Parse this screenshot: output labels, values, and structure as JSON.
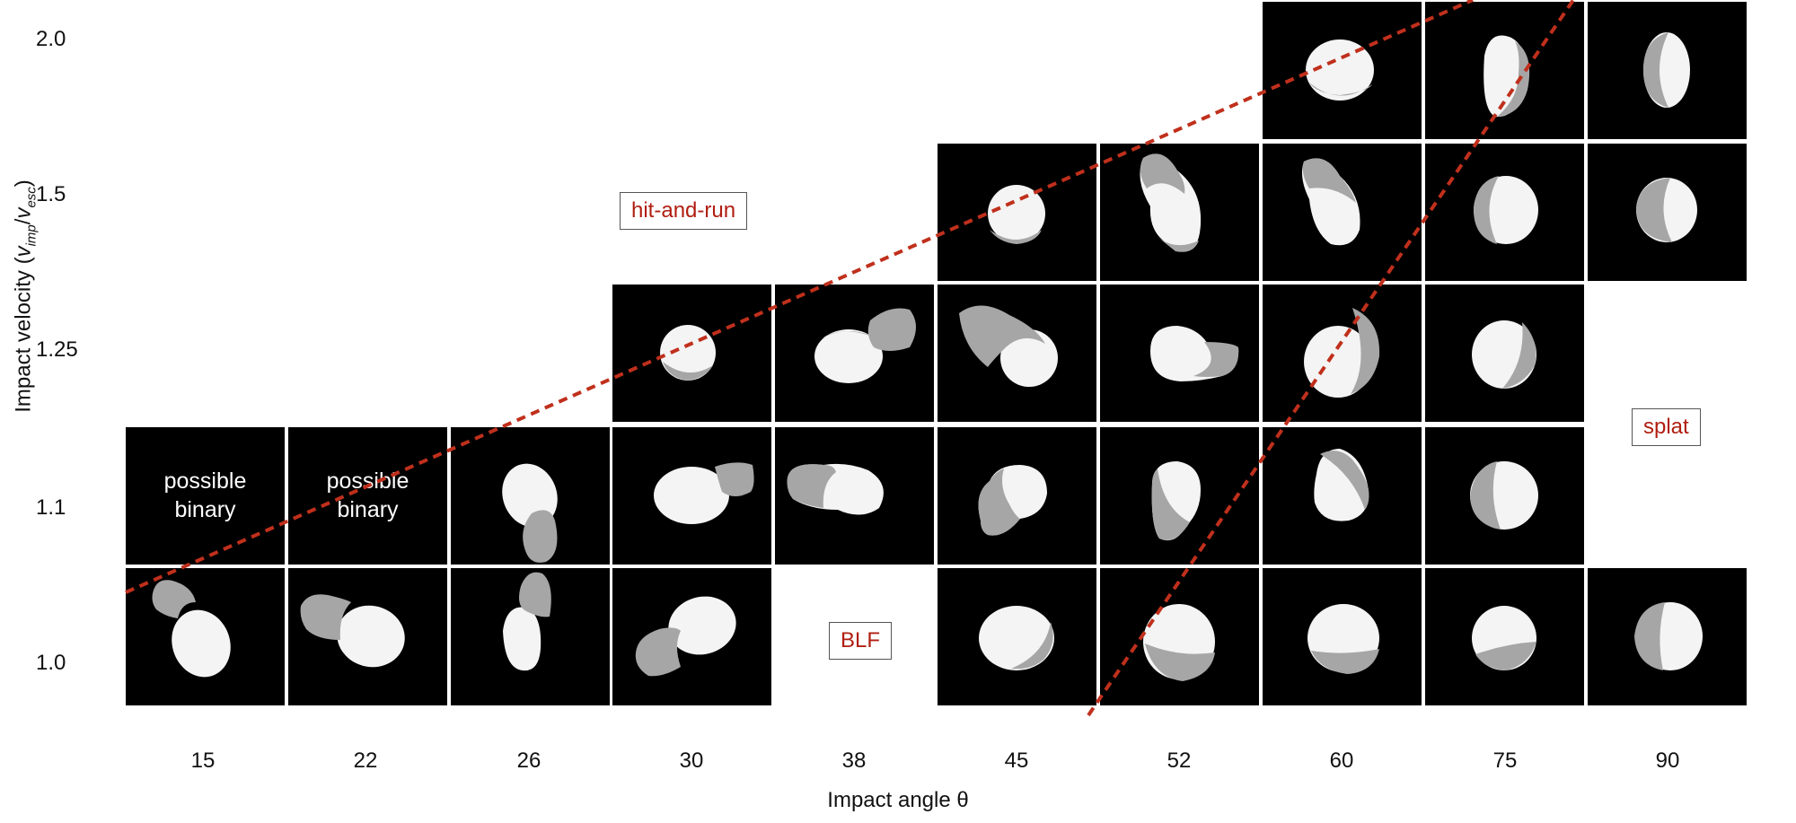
{
  "y_ticks": [
    "2.0",
    "1.5",
    "1.25",
    "1.1",
    "1.0"
  ],
  "x_ticks": [
    "15",
    "22",
    "26",
    "30",
    "38",
    "45",
    "52",
    "60",
    "75",
    "90"
  ],
  "y_label": {
    "main": "Impact velocity (",
    "v1": "v",
    "s1": "imp",
    "slash": "/",
    "v2": "v",
    "s2": "esc",
    "close": ")"
  },
  "x_label": "Impact angle θ",
  "regions": {
    "hit_and_run": "hit-and-run",
    "splat": "splat",
    "blf": "BLF"
  },
  "cell_labels": {
    "possible_binary_line1": "possible",
    "possible_binary_line2": "binary"
  },
  "colors": {
    "background": "#000000",
    "body_light": "#f4f4f4",
    "body_dark": "#a6a6a6",
    "boundary": "#c0301c",
    "region_text": "#b01e10"
  },
  "grid": {
    "rows_by_velocity": {
      "2.0": [
        "60",
        "75",
        "90"
      ],
      "1.5": [
        "45",
        "52",
        "60",
        "75",
        "90"
      ],
      "1.25": [
        "30",
        "38",
        "45",
        "52",
        "60",
        "75"
      ],
      "1.1": [
        "15",
        "22",
        "26",
        "30",
        "38",
        "45",
        "52",
        "60",
        "75"
      ],
      "1.0": [
        "15",
        "22",
        "26",
        "30",
        "45",
        "52",
        "60",
        "75",
        "90"
      ]
    },
    "text_only_cells": [
      "1.1/15",
      "1.1/22"
    ]
  },
  "boundary_lines": {
    "style": "dashed",
    "count": 2
  }
}
